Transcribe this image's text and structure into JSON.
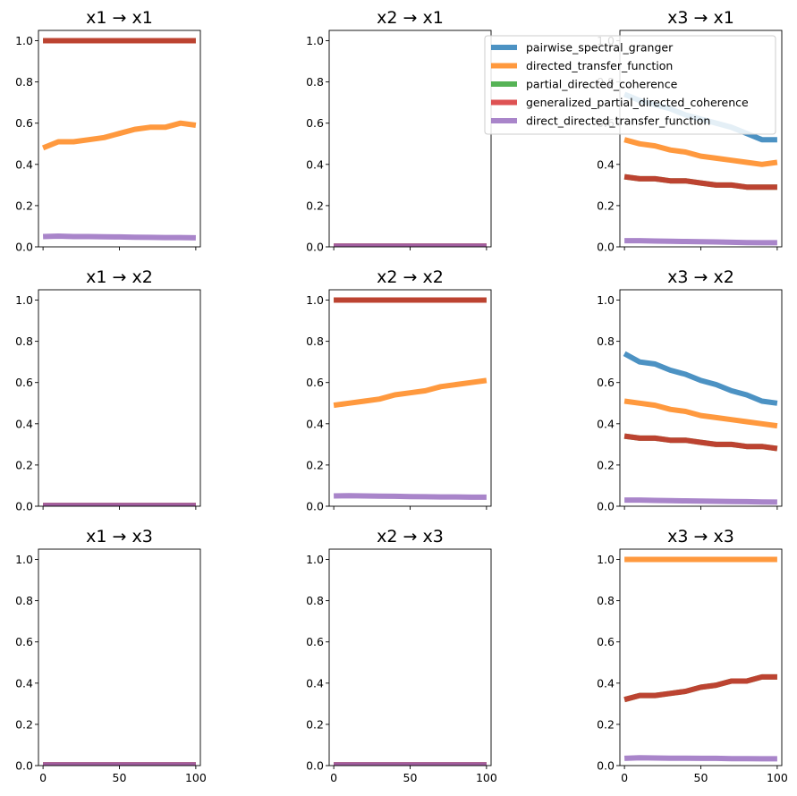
{
  "chart_data": {
    "type": "line",
    "layout": {
      "rows": 3,
      "cols": 3,
      "sharex": true
    },
    "xlim": [
      -3,
      103
    ],
    "ylim": [
      0,
      1.05
    ],
    "xticks": [
      0,
      50,
      100
    ],
    "xtick_labels": [
      "0",
      "50",
      "100"
    ],
    "yticks": [
      0.0,
      0.2,
      0.4,
      0.6,
      0.8,
      1.0
    ],
    "ytick_labels": [
      "0.0",
      "0.2",
      "0.4",
      "0.6",
      "0.8",
      "1.0"
    ],
    "legend": {
      "placement": "top-right of top row",
      "entries": [
        {
          "name": "pairwise_spectral_granger",
          "color": "#1f77b4"
        },
        {
          "name": "directed_transfer_function",
          "color": "#ff7f0e"
        },
        {
          "name": "partial_directed_coherence",
          "color": "#2ca02c"
        },
        {
          "name": "generalized_partial_directed_coherence",
          "color": "#d62728"
        },
        {
          "name": "direct_directed_transfer_function",
          "color": "#9467bd"
        }
      ]
    },
    "x": [
      0,
      10,
      20,
      30,
      40,
      50,
      60,
      70,
      80,
      90,
      100
    ],
    "panels": [
      {
        "title": "x1 → x1",
        "series": [
          {
            "name": "partial_directed_coherence",
            "color": "#2ca02c",
            "values": [
              1,
              1,
              1,
              1,
              1,
              1,
              1,
              1,
              1,
              1,
              1
            ]
          },
          {
            "name": "generalized_partial_directed_coherence",
            "color": "#d62728",
            "values": [
              1,
              1,
              1,
              1,
              1,
              1,
              1,
              1,
              1,
              1,
              1
            ]
          },
          {
            "name": "directed_transfer_function",
            "color": "#ff7f0e",
            "values": [
              0.48,
              0.51,
              0.51,
              0.52,
              0.53,
              0.55,
              0.57,
              0.58,
              0.58,
              0.6,
              0.59
            ]
          },
          {
            "name": "direct_directed_transfer_function",
            "color": "#9467bd",
            "values": [
              0.05,
              0.052,
              0.05,
              0.05,
              0.049,
              0.048,
              0.047,
              0.046,
              0.045,
              0.045,
              0.044
            ]
          }
        ]
      },
      {
        "title": "x2 → x1",
        "series": [
          {
            "name": "pairwise_spectral_granger",
            "color": "#1f77b4",
            "values": [
              0.003,
              0.003,
              0.003,
              0.003,
              0.003,
              0.003,
              0.003,
              0.003,
              0.003,
              0.003,
              0.003
            ]
          },
          {
            "name": "directed_transfer_function",
            "color": "#ff7f0e",
            "values": [
              0.003,
              0.003,
              0.003,
              0.003,
              0.003,
              0.003,
              0.003,
              0.003,
              0.003,
              0.003,
              0.003
            ]
          },
          {
            "name": "generalized_partial_directed_coherence",
            "color": "#d62728",
            "values": [
              0.003,
              0.003,
              0.003,
              0.003,
              0.003,
              0.003,
              0.003,
              0.003,
              0.003,
              0.003,
              0.003
            ]
          },
          {
            "name": "direct_directed_transfer_function",
            "color": "#9467bd",
            "values": [
              0.003,
              0.003,
              0.003,
              0.003,
              0.003,
              0.003,
              0.003,
              0.003,
              0.003,
              0.003,
              0.003
            ]
          }
        ]
      },
      {
        "title": "x3 → x1",
        "series": [
          {
            "name": "pairwise_spectral_granger",
            "color": "#1f77b4",
            "values": [
              0.74,
              0.71,
              0.69,
              0.67,
              0.64,
              0.62,
              0.6,
              0.58,
              0.55,
              0.52,
              0.52
            ]
          },
          {
            "name": "directed_transfer_function",
            "color": "#ff7f0e",
            "values": [
              0.52,
              0.5,
              0.49,
              0.47,
              0.46,
              0.44,
              0.43,
              0.42,
              0.41,
              0.4,
              0.41
            ]
          },
          {
            "name": "partial_directed_coherence",
            "color": "#2ca02c",
            "values": [
              0.34,
              0.33,
              0.33,
              0.32,
              0.32,
              0.31,
              0.3,
              0.3,
              0.29,
              0.29,
              0.29
            ]
          },
          {
            "name": "generalized_partial_directed_coherence",
            "color": "#d62728",
            "values": [
              0.34,
              0.33,
              0.33,
              0.32,
              0.32,
              0.31,
              0.3,
              0.3,
              0.29,
              0.29,
              0.29
            ]
          },
          {
            "name": "direct_directed_transfer_function",
            "color": "#9467bd",
            "values": [
              0.03,
              0.03,
              0.028,
              0.027,
              0.026,
              0.025,
              0.024,
              0.022,
              0.021,
              0.02,
              0.02
            ]
          }
        ]
      },
      {
        "title": "x1 → x2",
        "series": [
          {
            "name": "pairwise_spectral_granger",
            "color": "#1f77b4",
            "values": [
              0.003,
              0.003,
              0.003,
              0.003,
              0.003,
              0.003,
              0.003,
              0.003,
              0.003,
              0.003,
              0.003
            ]
          },
          {
            "name": "directed_transfer_function",
            "color": "#ff7f0e",
            "values": [
              0.003,
              0.003,
              0.003,
              0.003,
              0.003,
              0.003,
              0.003,
              0.003,
              0.003,
              0.003,
              0.003
            ]
          },
          {
            "name": "generalized_partial_directed_coherence",
            "color": "#d62728",
            "values": [
              0.003,
              0.003,
              0.003,
              0.003,
              0.003,
              0.003,
              0.003,
              0.003,
              0.003,
              0.003,
              0.003
            ]
          },
          {
            "name": "direct_directed_transfer_function",
            "color": "#9467bd",
            "values": [
              0.003,
              0.003,
              0.003,
              0.003,
              0.003,
              0.003,
              0.003,
              0.003,
              0.003,
              0.003,
              0.003
            ]
          }
        ]
      },
      {
        "title": "x2 → x2",
        "series": [
          {
            "name": "partial_directed_coherence",
            "color": "#2ca02c",
            "values": [
              1,
              1,
              1,
              1,
              1,
              1,
              1,
              1,
              1,
              1,
              1
            ]
          },
          {
            "name": "generalized_partial_directed_coherence",
            "color": "#d62728",
            "values": [
              1,
              1,
              1,
              1,
              1,
              1,
              1,
              1,
              1,
              1,
              1
            ]
          },
          {
            "name": "directed_transfer_function",
            "color": "#ff7f0e",
            "values": [
              0.49,
              0.5,
              0.51,
              0.52,
              0.54,
              0.55,
              0.56,
              0.58,
              0.59,
              0.6,
              0.61
            ]
          },
          {
            "name": "direct_directed_transfer_function",
            "color": "#9467bd",
            "values": [
              0.05,
              0.051,
              0.05,
              0.049,
              0.048,
              0.047,
              0.046,
              0.045,
              0.045,
              0.044,
              0.044
            ]
          }
        ]
      },
      {
        "title": "x3 → x2",
        "series": [
          {
            "name": "pairwise_spectral_granger",
            "color": "#1f77b4",
            "values": [
              0.74,
              0.7,
              0.69,
              0.66,
              0.64,
              0.61,
              0.59,
              0.56,
              0.54,
              0.51,
              0.5
            ]
          },
          {
            "name": "directed_transfer_function",
            "color": "#ff7f0e",
            "values": [
              0.51,
              0.5,
              0.49,
              0.47,
              0.46,
              0.44,
              0.43,
              0.42,
              0.41,
              0.4,
              0.39
            ]
          },
          {
            "name": "partial_directed_coherence",
            "color": "#2ca02c",
            "values": [
              0.34,
              0.33,
              0.33,
              0.32,
              0.32,
              0.31,
              0.3,
              0.3,
              0.29,
              0.29,
              0.28
            ]
          },
          {
            "name": "generalized_partial_directed_coherence",
            "color": "#d62728",
            "values": [
              0.34,
              0.33,
              0.33,
              0.32,
              0.32,
              0.31,
              0.3,
              0.3,
              0.29,
              0.29,
              0.28
            ]
          },
          {
            "name": "direct_directed_transfer_function",
            "color": "#9467bd",
            "values": [
              0.03,
              0.03,
              0.028,
              0.027,
              0.026,
              0.025,
              0.024,
              0.023,
              0.022,
              0.021,
              0.02
            ]
          }
        ]
      },
      {
        "title": "x1 → x3",
        "series": [
          {
            "name": "pairwise_spectral_granger",
            "color": "#1f77b4",
            "values": [
              0.003,
              0.003,
              0.003,
              0.003,
              0.003,
              0.003,
              0.003,
              0.003,
              0.003,
              0.003,
              0.003
            ]
          },
          {
            "name": "directed_transfer_function",
            "color": "#ff7f0e",
            "values": [
              0.003,
              0.003,
              0.003,
              0.003,
              0.003,
              0.003,
              0.003,
              0.003,
              0.003,
              0.003,
              0.003
            ]
          },
          {
            "name": "generalized_partial_directed_coherence",
            "color": "#d62728",
            "values": [
              0.003,
              0.003,
              0.003,
              0.003,
              0.003,
              0.003,
              0.003,
              0.003,
              0.003,
              0.003,
              0.003
            ]
          },
          {
            "name": "direct_directed_transfer_function",
            "color": "#9467bd",
            "values": [
              0.003,
              0.003,
              0.003,
              0.003,
              0.003,
              0.003,
              0.003,
              0.003,
              0.003,
              0.003,
              0.003
            ]
          }
        ]
      },
      {
        "title": "x2 → x3",
        "series": [
          {
            "name": "pairwise_spectral_granger",
            "color": "#1f77b4",
            "values": [
              0.003,
              0.003,
              0.003,
              0.003,
              0.003,
              0.003,
              0.003,
              0.003,
              0.003,
              0.003,
              0.003
            ]
          },
          {
            "name": "directed_transfer_function",
            "color": "#ff7f0e",
            "values": [
              0.003,
              0.003,
              0.003,
              0.003,
              0.003,
              0.003,
              0.003,
              0.003,
              0.003,
              0.003,
              0.003
            ]
          },
          {
            "name": "generalized_partial_directed_coherence",
            "color": "#d62728",
            "values": [
              0.003,
              0.003,
              0.003,
              0.003,
              0.003,
              0.003,
              0.003,
              0.003,
              0.003,
              0.003,
              0.003
            ]
          },
          {
            "name": "direct_directed_transfer_function",
            "color": "#9467bd",
            "values": [
              0.003,
              0.003,
              0.003,
              0.003,
              0.003,
              0.003,
              0.003,
              0.003,
              0.003,
              0.003,
              0.003
            ]
          }
        ]
      },
      {
        "title": "x3 → x3",
        "series": [
          {
            "name": "directed_transfer_function",
            "color": "#ff7f0e",
            "values": [
              1,
              1,
              1,
              1,
              1,
              1,
              1,
              1,
              1,
              1,
              1
            ]
          },
          {
            "name": "partial_directed_coherence",
            "color": "#2ca02c",
            "values": [
              0.32,
              0.34,
              0.34,
              0.35,
              0.36,
              0.38,
              0.39,
              0.41,
              0.41,
              0.43,
              0.43
            ]
          },
          {
            "name": "generalized_partial_directed_coherence",
            "color": "#d62728",
            "values": [
              0.32,
              0.34,
              0.34,
              0.35,
              0.36,
              0.38,
              0.39,
              0.41,
              0.41,
              0.43,
              0.43
            ]
          },
          {
            "name": "direct_directed_transfer_function",
            "color": "#9467bd",
            "values": [
              0.035,
              0.038,
              0.037,
              0.036,
              0.036,
              0.035,
              0.035,
              0.034,
              0.034,
              0.033,
              0.033
            ]
          }
        ]
      }
    ]
  }
}
